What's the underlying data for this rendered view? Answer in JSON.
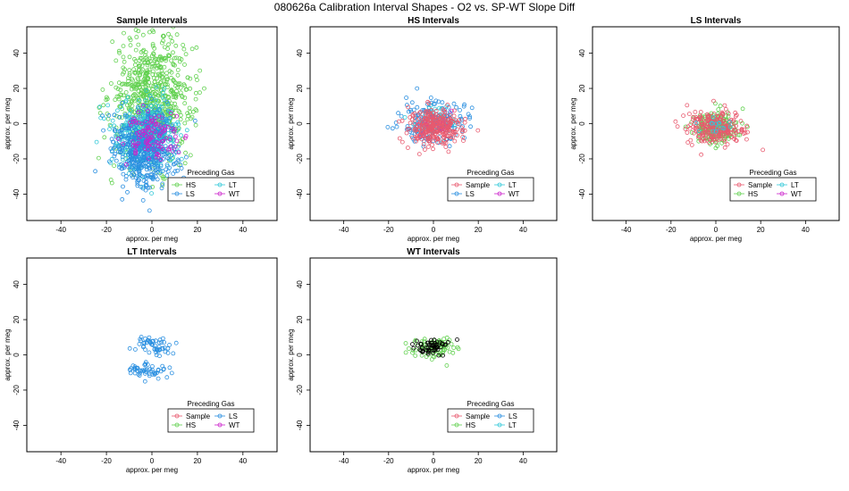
{
  "figure": {
    "title": "080626a   Calibration Interval Shapes - O2 vs. SP-WT Slope Diff"
  },
  "colors": {
    "Sample": "#e8596e",
    "HS": "#62d150",
    "LS": "#2a8fe0",
    "LT": "#32c8d8",
    "WT": "#cc22cc",
    "black": "#000000"
  },
  "chart_data": [
    {
      "type": "scatter",
      "title": "Sample Intervals",
      "xlabel": "approx. per meg",
      "ylabel": "approx. per meg",
      "xlim": [
        -55,
        55
      ],
      "ylim": [
        -55,
        55
      ],
      "xticks": [
        -40,
        -20,
        0,
        20,
        40
      ],
      "yticks": [
        -40,
        -20,
        0,
        20,
        40
      ],
      "legend": {
        "title": "Preceding Gas",
        "position": "bottom-right",
        "entries": [
          {
            "name": "HS",
            "color": "HS"
          },
          {
            "name": "LT",
            "color": "LT"
          },
          {
            "name": "LS",
            "color": "LS"
          },
          {
            "name": "WT",
            "color": "WT"
          }
        ]
      },
      "series": [
        {
          "name": "HS",
          "color": "HS",
          "n": 650,
          "mean": [
            0,
            15
          ],
          "sd": [
            9,
            17
          ]
        },
        {
          "name": "LT",
          "color": "LT",
          "n": 380,
          "mean": [
            -2,
            -6
          ],
          "sd": [
            7,
            10
          ]
        },
        {
          "name": "LS",
          "color": "LS",
          "n": 520,
          "mean": [
            -3,
            -14
          ],
          "sd": [
            7,
            11
          ]
        },
        {
          "name": "WT",
          "color": "WT",
          "n": 110,
          "mean": [
            0,
            -7
          ],
          "sd": [
            6,
            6
          ]
        }
      ]
    },
    {
      "type": "scatter",
      "title": "HS Intervals",
      "xlabel": "approx. per meg",
      "ylabel": "approx. per meg",
      "xlim": [
        -55,
        55
      ],
      "ylim": [
        -55,
        55
      ],
      "xticks": [
        -40,
        -20,
        0,
        20,
        40
      ],
      "yticks": [
        -40,
        -20,
        0,
        20,
        40
      ],
      "legend": {
        "title": "Preceding Gas",
        "position": "bottom-right",
        "entries": [
          {
            "name": "Sample",
            "color": "Sample"
          },
          {
            "name": "LT",
            "color": "LT"
          },
          {
            "name": "LS",
            "color": "LS"
          },
          {
            "name": "WT",
            "color": "WT"
          }
        ]
      },
      "series": [
        {
          "name": "LS",
          "color": "LS",
          "n": 180,
          "mean": [
            0,
            1
          ],
          "sd": [
            7,
            6
          ]
        },
        {
          "name": "LT",
          "color": "LT",
          "n": 60,
          "mean": [
            0,
            2
          ],
          "sd": [
            5,
            4
          ]
        },
        {
          "name": "WT",
          "color": "WT",
          "n": 25,
          "mean": [
            0,
            0
          ],
          "sd": [
            4,
            3
          ]
        },
        {
          "name": "Sample",
          "color": "Sample",
          "n": 280,
          "mean": [
            1,
            -2
          ],
          "sd": [
            6,
            5.5
          ]
        }
      ]
    },
    {
      "type": "scatter",
      "title": "LS Intervals",
      "xlabel": "approx. per meg",
      "ylabel": "approx. per meg",
      "xlim": [
        -55,
        55
      ],
      "ylim": [
        -55,
        55
      ],
      "xticks": [
        -40,
        -20,
        0,
        20,
        40
      ],
      "yticks": [
        -40,
        -20,
        0,
        20,
        40
      ],
      "legend": {
        "title": "Preceding Gas",
        "position": "bottom-right",
        "entries": [
          {
            "name": "Sample",
            "color": "Sample"
          },
          {
            "name": "LT",
            "color": "LT"
          },
          {
            "name": "HS",
            "color": "HS"
          },
          {
            "name": "WT",
            "color": "WT"
          }
        ]
      },
      "series": [
        {
          "name": "HS",
          "color": "HS",
          "n": 200,
          "mean": [
            0,
            -2
          ],
          "sd": [
            5,
            4.5
          ]
        },
        {
          "name": "Sample",
          "color": "Sample",
          "n": 230,
          "mean": [
            0,
            -3
          ],
          "sd": [
            6.5,
            5
          ]
        },
        {
          "name": "LT",
          "color": "LT",
          "n": 15,
          "mean": [
            0,
            -2
          ],
          "sd": [
            3,
            3
          ]
        }
      ]
    },
    {
      "type": "scatter",
      "title": "LT Intervals",
      "xlabel": "approx. per meg",
      "ylabel": "approx. per meg",
      "xlim": [
        -55,
        55
      ],
      "ylim": [
        -55,
        55
      ],
      "xticks": [
        -40,
        -20,
        0,
        20,
        40
      ],
      "yticks": [
        -40,
        -20,
        0,
        20,
        40
      ],
      "legend": {
        "title": "Preceding Gas",
        "position": "bottom-right",
        "entries": [
          {
            "name": "Sample",
            "color": "Sample"
          },
          {
            "name": "LS",
            "color": "LS"
          },
          {
            "name": "HS",
            "color": "HS"
          },
          {
            "name": "WT",
            "color": "WT"
          }
        ]
      },
      "series": [
        {
          "name": "LS",
          "color": "LS",
          "n": 55,
          "mean": [
            1,
            5
          ],
          "sd": [
            4,
            3
          ]
        },
        {
          "name": "LS",
          "color": "LS",
          "n": 55,
          "mean": [
            -2,
            -9
          ],
          "sd": [
            4,
            2.5
          ]
        }
      ]
    },
    {
      "type": "scatter",
      "title": "WT Intervals",
      "xlabel": "approx. per meg",
      "ylabel": "approx. per meg",
      "xlim": [
        -55,
        55
      ],
      "ylim": [
        -55,
        55
      ],
      "xticks": [
        -40,
        -20,
        0,
        20,
        40
      ],
      "yticks": [
        -40,
        -20,
        0,
        20,
        40
      ],
      "legend": {
        "title": "Preceding Gas",
        "position": "bottom-right",
        "entries": [
          {
            "name": "Sample",
            "color": "Sample"
          },
          {
            "name": "LS",
            "color": "LS"
          },
          {
            "name": "HS",
            "color": "HS"
          },
          {
            "name": "LT",
            "color": "LT"
          }
        ]
      },
      "series": [
        {
          "name": "HS",
          "color": "HS",
          "n": 90,
          "mean": [
            0,
            4
          ],
          "sd": [
            5,
            3
          ]
        },
        {
          "name": "black",
          "color": "black",
          "n": 55,
          "mean": [
            0,
            5
          ],
          "sd": [
            4,
            2.5
          ]
        }
      ]
    }
  ]
}
